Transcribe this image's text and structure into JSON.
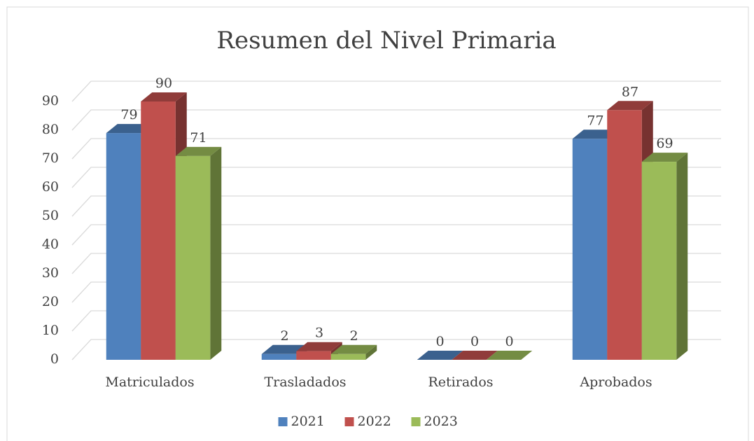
{
  "chart_data": {
    "type": "bar3d",
    "title": "Resumen del Nivel Primaria",
    "categories": [
      "Matriculados",
      "Trasladados",
      "Retirados",
      "Aprobados"
    ],
    "series": [
      {
        "name": "2021",
        "color": "#4f81bd",
        "values": [
          79,
          2,
          0,
          77
        ]
      },
      {
        "name": "2022",
        "color": "#c0504d",
        "values": [
          90,
          3,
          0,
          87
        ]
      },
      {
        "name": "2023",
        "color": "#9bbb59",
        "values": [
          71,
          2,
          0,
          69
        ]
      }
    ],
    "ylim": [
      0,
      90
    ],
    "yticks": [
      0,
      10,
      20,
      30,
      40,
      50,
      60,
      70,
      80,
      90
    ],
    "grid": true,
    "legend": "bottom"
  }
}
